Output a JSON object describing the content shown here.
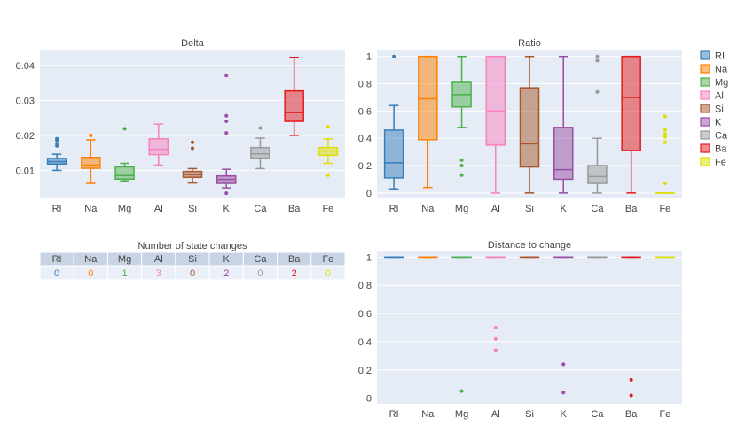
{
  "categories": [
    "RI",
    "Na",
    "Mg",
    "Al",
    "Si",
    "K",
    "Ca",
    "Ba",
    "Fe"
  ],
  "colors": [
    "#377eb8",
    "#ff7f00",
    "#4daf4a",
    "#f781bf",
    "#a65628",
    "#984ea3",
    "#999999",
    "#e41a1c",
    "#dede00"
  ],
  "legend": {
    "items": [
      "RI",
      "Na",
      "Mg",
      "Al",
      "Si",
      "K",
      "Ca",
      "Ba",
      "Fe"
    ],
    "placement": "top-right"
  },
  "chart_data": [
    {
      "id": "delta",
      "type": "box",
      "title": "Delta",
      "categories": [
        "RI",
        "Na",
        "Mg",
        "Al",
        "Si",
        "K",
        "Ca",
        "Ba",
        "Fe"
      ],
      "ylim": [
        0.002,
        0.0445
      ],
      "yticks": [
        0.01,
        0.02,
        0.03,
        0.04
      ],
      "ytick_labels": [
        "0.01",
        "0.02",
        "0.03",
        "0.04"
      ],
      "boxes": [
        {
          "q1": 0.0118,
          "median": 0.0125,
          "q3": 0.0134,
          "low": 0.01,
          "high": 0.0146,
          "outliers": [
            0.017,
            0.0176,
            0.0186,
            0.019
          ]
        },
        {
          "q1": 0.0106,
          "median": 0.0115,
          "q3": 0.0137,
          "low": 0.0063,
          "high": 0.0187,
          "outliers": [
            0.02
          ]
        },
        {
          "q1": 0.0075,
          "median": 0.0085,
          "q3": 0.011,
          "low": 0.007,
          "high": 0.012,
          "outliers": [
            0.0219
          ]
        },
        {
          "q1": 0.0145,
          "median": 0.016,
          "q3": 0.019,
          "low": 0.0115,
          "high": 0.0232,
          "outliers": []
        },
        {
          "q1": 0.008,
          "median": 0.0088,
          "q3": 0.0097,
          "low": 0.0064,
          "high": 0.0105,
          "outliers": [
            0.0163,
            0.018
          ]
        },
        {
          "q1": 0.0063,
          "median": 0.0074,
          "q3": 0.0084,
          "low": 0.005,
          "high": 0.0103,
          "outliers": [
            0.0035,
            0.0207,
            0.024,
            0.0256,
            0.0371
          ]
        },
        {
          "q1": 0.0135,
          "median": 0.0147,
          "q3": 0.0165,
          "low": 0.0105,
          "high": 0.0192,
          "outliers": [
            0.0221
          ]
        },
        {
          "q1": 0.024,
          "median": 0.0265,
          "q3": 0.0327,
          "low": 0.02,
          "high": 0.0423,
          "outliers": []
        },
        {
          "q1": 0.0143,
          "median": 0.0155,
          "q3": 0.0165,
          "low": 0.012,
          "high": 0.019,
          "outliers": [
            0.0086,
            0.0224
          ]
        }
      ]
    },
    {
      "id": "ratio",
      "type": "box",
      "title": "Ratio",
      "categories": [
        "RI",
        "Na",
        "Mg",
        "Al",
        "Si",
        "K",
        "Ca",
        "Ba",
        "Fe"
      ],
      "ylim": [
        -0.04,
        1.05
      ],
      "yticks": [
        0,
        0.2,
        0.4,
        0.6,
        0.8,
        1
      ],
      "ytick_labels": [
        "0",
        "0.2",
        "0.4",
        "0.6",
        "0.8",
        "1"
      ],
      "boxes": [
        {
          "q1": 0.11,
          "median": 0.22,
          "q3": 0.46,
          "low": 0.03,
          "high": 0.64,
          "outliers": [
            1.0
          ]
        },
        {
          "q1": 0.39,
          "median": 0.69,
          "q3": 1.0,
          "low": 0.04,
          "high": 1.0,
          "outliers": []
        },
        {
          "q1": 0.63,
          "median": 0.72,
          "q3": 0.81,
          "low": 0.48,
          "high": 1.0,
          "outliers": [
            0.13,
            0.2,
            0.24
          ]
        },
        {
          "q1": 0.35,
          "median": 0.6,
          "q3": 1.0,
          "low": 0.0,
          "high": 1.0,
          "outliers": []
        },
        {
          "q1": 0.19,
          "median": 0.36,
          "q3": 0.77,
          "low": 0.0,
          "high": 1.0,
          "outliers": []
        },
        {
          "q1": 0.1,
          "median": 0.17,
          "q3": 0.48,
          "low": 0.0,
          "high": 1.0,
          "outliers": []
        },
        {
          "q1": 0.07,
          "median": 0.12,
          "q3": 0.2,
          "low": 0.0,
          "high": 0.4,
          "outliers": [
            0.74,
            0.97,
            1.0
          ]
        },
        {
          "q1": 0.31,
          "median": 0.7,
          "q3": 1.0,
          "low": 0.0,
          "high": 1.0,
          "outliers": []
        },
        {
          "q1": 0.0,
          "median": 0.0,
          "q3": 0.0,
          "low": 0.0,
          "high": 0.0,
          "outliers": [
            0.07,
            0.37,
            0.41,
            0.43,
            0.46,
            0.56
          ]
        }
      ]
    },
    {
      "id": "state_changes",
      "type": "table",
      "title": "Number of state changes",
      "columns": [
        "RI",
        "Na",
        "Mg",
        "Al",
        "Si",
        "K",
        "Ca",
        "Ba",
        "Fe"
      ],
      "values": [
        "0",
        "0",
        "1",
        "3",
        "0",
        "2",
        "0",
        "2",
        "0"
      ]
    },
    {
      "id": "distance",
      "type": "box",
      "title": "Distance to change",
      "categories": [
        "RI",
        "Na",
        "Mg",
        "Al",
        "Si",
        "K",
        "Ca",
        "Ba",
        "Fe"
      ],
      "ylim": [
        -0.04,
        1.04
      ],
      "yticks": [
        0,
        0.2,
        0.4,
        0.6,
        0.8,
        1
      ],
      "ytick_labels": [
        "0",
        "0.2",
        "0.4",
        "0.6",
        "0.8",
        "1"
      ],
      "boxes": [
        {
          "q1": 1,
          "median": 1,
          "q3": 1,
          "low": 1,
          "high": 1,
          "outliers": []
        },
        {
          "q1": 1,
          "median": 1,
          "q3": 1,
          "low": 1,
          "high": 1,
          "outliers": []
        },
        {
          "q1": 1,
          "median": 1,
          "q3": 1,
          "low": 1,
          "high": 1,
          "outliers": [
            0.05
          ]
        },
        {
          "q1": 1,
          "median": 1,
          "q3": 1,
          "low": 1,
          "high": 1,
          "outliers": [
            0.34,
            0.42,
            0.5
          ]
        },
        {
          "q1": 1,
          "median": 1,
          "q3": 1,
          "low": 1,
          "high": 1,
          "outliers": []
        },
        {
          "q1": 1,
          "median": 1,
          "q3": 1,
          "low": 1,
          "high": 1,
          "outliers": [
            0.04,
            0.24
          ]
        },
        {
          "q1": 1,
          "median": 1,
          "q3": 1,
          "low": 1,
          "high": 1,
          "outliers": []
        },
        {
          "q1": 1,
          "median": 1,
          "q3": 1,
          "low": 1,
          "high": 1,
          "outliers": [
            0.02,
            0.13
          ]
        },
        {
          "q1": 1,
          "median": 1,
          "q3": 1,
          "low": 1,
          "high": 1,
          "outliers": []
        }
      ]
    }
  ]
}
